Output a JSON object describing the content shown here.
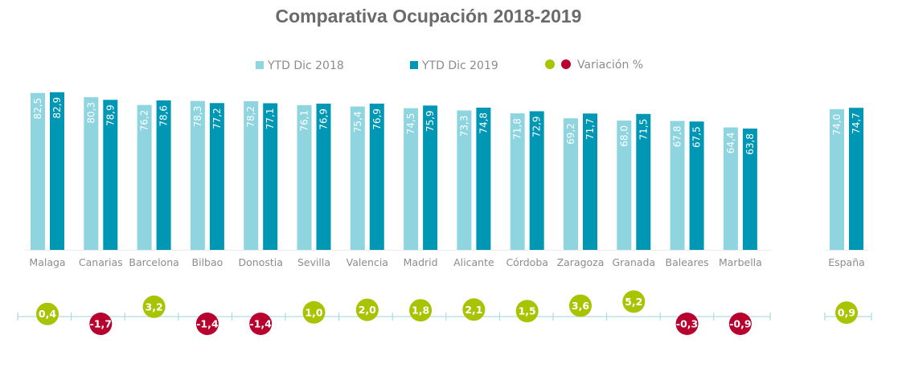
{
  "colors": {
    "series_2018": "#8fd5e0",
    "series_2019": "#0097b5",
    "positive": "#a8c300",
    "negative": "#b8002e",
    "axis": "#9fd6df",
    "label_text": "#8c8c8c"
  },
  "legend": {
    "series_2018": "YTD  Dic 2018",
    "series_2019": "YTD  Dic 2019",
    "variation": "Variación %"
  },
  "chart_data": {
    "type": "bar",
    "title": "Comparativa Ocupación 2018-2019",
    "xlabel": "",
    "ylabel": "",
    "legend_position": "top",
    "grid": false,
    "categories": [
      "Malaga",
      "Canarias",
      "Barcelona",
      "Bilbao",
      "Donostia",
      "Sevilla",
      "Valencia",
      "Madrid",
      "Alicante",
      "Córdoba",
      "Zaragoza",
      "Granada",
      "Baleares",
      "Marbella",
      "España"
    ],
    "series": [
      {
        "name": "YTD  Dic 2018",
        "values": [
          82.5,
          80.3,
          76.2,
          78.3,
          78.2,
          76.1,
          75.4,
          74.5,
          73.3,
          71.8,
          69.2,
          68.0,
          67.8,
          64.4,
          74.0
        ],
        "labels": [
          "82,5",
          "80,3",
          "76,2",
          "78,3",
          "78,2",
          "76,1",
          "75,4",
          "74,5",
          "73,3",
          "71,8",
          "69,2",
          "68,0",
          "67,8",
          "64,4",
          "74,0"
        ]
      },
      {
        "name": "YTD  Dic 2019",
        "values": [
          82.9,
          78.9,
          78.6,
          77.2,
          77.1,
          76.9,
          76.9,
          75.9,
          74.8,
          72.9,
          71.7,
          71.5,
          67.5,
          63.8,
          74.7
        ],
        "labels": [
          "82,9",
          "78,9",
          "78,6",
          "77,2",
          "77,1",
          "76,9",
          "76,9",
          "75,9",
          "74,8",
          "72,9",
          "71,7",
          "71,5",
          "67,5",
          "63,8",
          "74,7"
        ]
      }
    ],
    "variation": {
      "name": "Variación %",
      "values": [
        0.4,
        -1.7,
        3.2,
        -1.4,
        -1.4,
        1.0,
        2.0,
        1.8,
        2.1,
        1.5,
        3.6,
        5.2,
        -0.3,
        -0.9,
        0.9
      ],
      "labels": [
        "0,4",
        "-1,7",
        "3,2",
        "-1,4",
        "-1,4",
        "1,0",
        "2,0",
        "1,8",
        "2,1",
        "1,5",
        "3,6",
        "5,2",
        "-0,3",
        "-0,9",
        "0,9"
      ]
    },
    "ylim": [
      0,
      100
    ]
  }
}
